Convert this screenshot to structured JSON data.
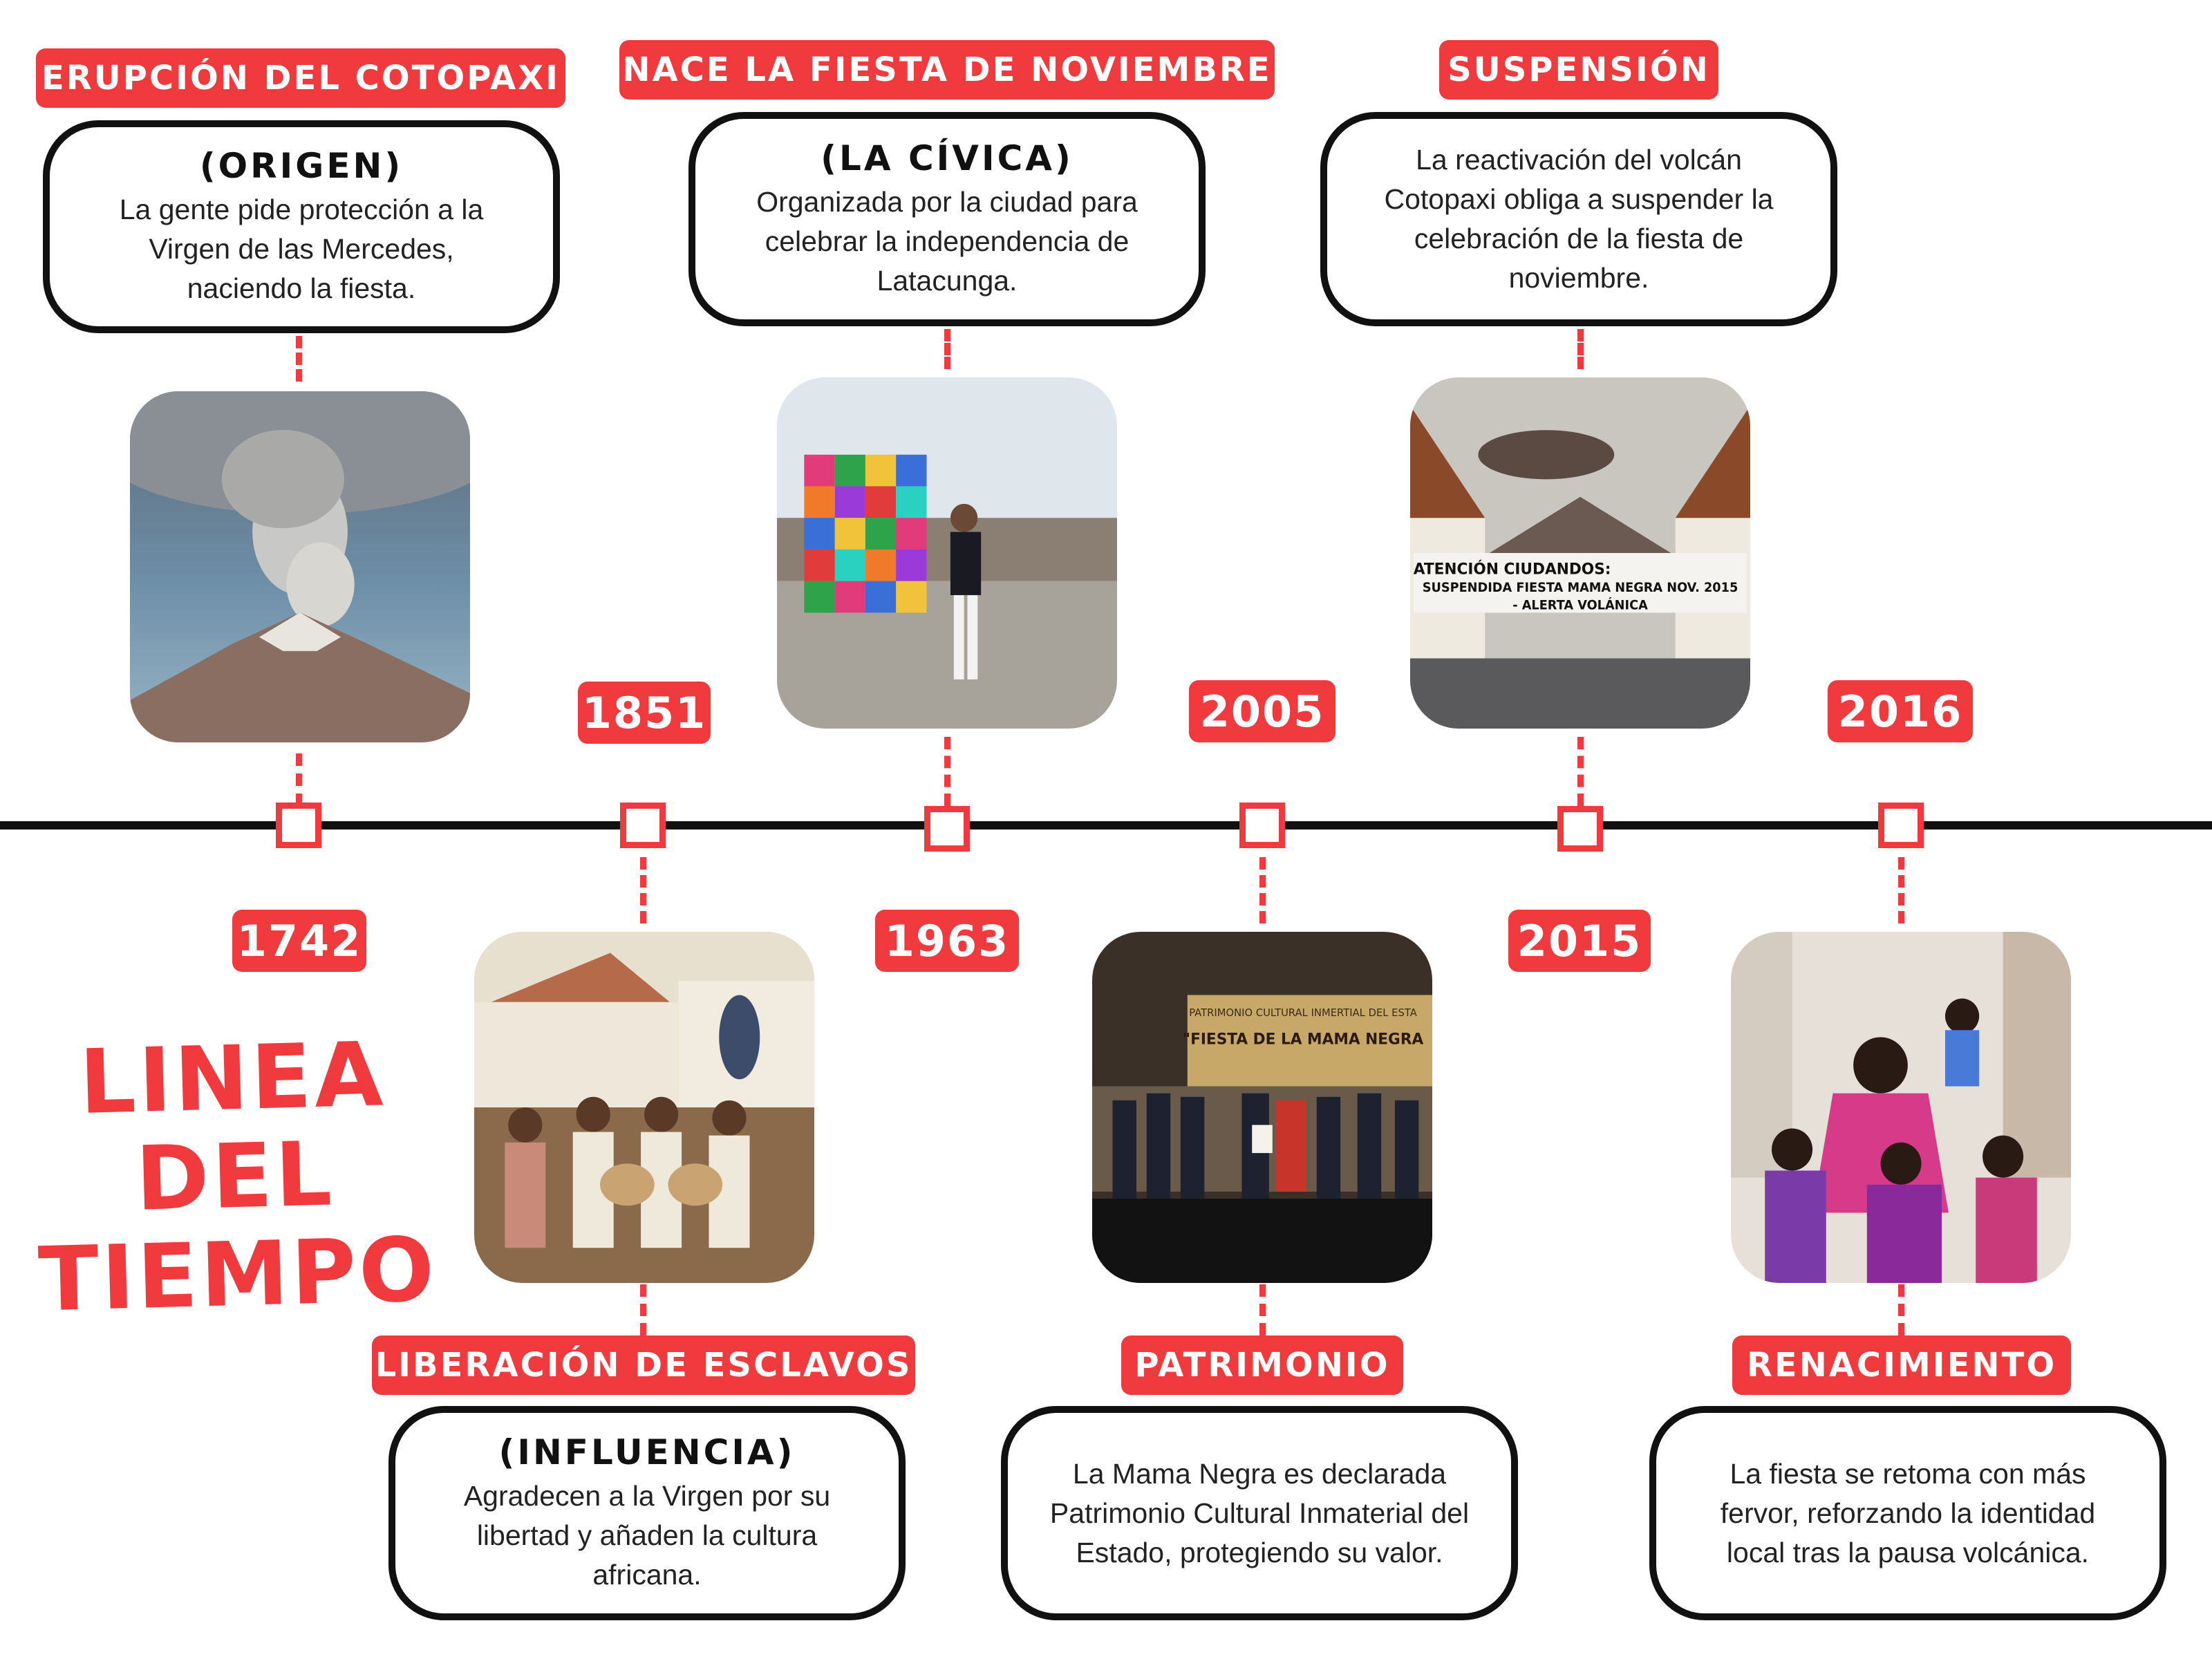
{
  "title": "LINEA DEL TIEMPO",
  "events": [
    {
      "year": "1742",
      "title": "ERUPCIÓN DEL COTOPAXI",
      "subtitle": "(ORIGEN)",
      "text": "La gente pide protección a la Virgen de las Mercedes, naciendo la fiesta."
    },
    {
      "year": "1851",
      "title": "LIBERACIÓN DE ESCLAVOS",
      "subtitle": "(INFLUENCIA)",
      "text": "Agradecen a la Virgen por su libertad y añaden la cultura africana."
    },
    {
      "year": "1963",
      "title": "NACE LA FIESTA DE NOVIEMBRE",
      "subtitle": "(LA CÍVICA)",
      "text": "Organizada por la ciudad para celebrar la independencia de Latacunga."
    },
    {
      "year": "2005",
      "title": "PATRIMONIO",
      "subtitle": "",
      "text": "La Mama Negra es declarada Patrimonio Cultural Inmaterial del Estado, protegiendo su valor."
    },
    {
      "year": "2015",
      "title": "SUSPENSIÓN",
      "subtitle": "",
      "text": "La reactivación del volcán Cotopaxi obliga a suspender la celebración de la fiesta de noviembre."
    },
    {
      "year": "2016",
      "title": "RENACIMIENTO",
      "subtitle": "",
      "text": "La fiesta se retoma con más fervor, reforzando la identidad local tras la pausa volcánica."
    }
  ],
  "photo_texts": {
    "banner_line1": "ATENCIÓN CIUDANDOS:",
    "banner_line2": "SUSPENDIDA FIESTA MAMA NEGRA NOV. 2015",
    "banner_line3": "- ALERTA VOLÁNICA",
    "stage_line1": "PATRIMONIO CULTURAL INMERTIAL DEL ESTA",
    "stage_line2": "\"FIESTA DE LA MAMA NEGRA"
  },
  "colors": {
    "accent": "#f03a3e",
    "line": "#111111",
    "background": "#ffffff"
  }
}
